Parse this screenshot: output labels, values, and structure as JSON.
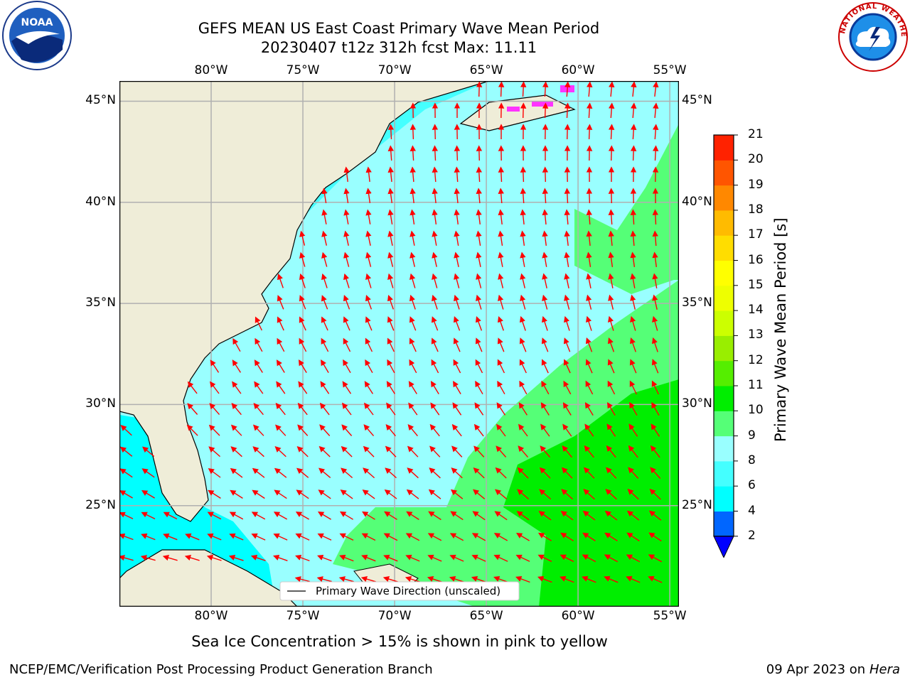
{
  "title": {
    "line1": "GEFS MEAN US East Coast Primary Wave Mean Period",
    "line2": "20230407 t12z 312h fcst   Max: 11.11"
  },
  "logos": {
    "left": "noaa-logo",
    "right": "national-weather-service-logo",
    "left_text": "NOAA",
    "right_text": "NATIONAL WEATHER SERVICE"
  },
  "map": {
    "lon_ticks": [
      "80°W",
      "75°W",
      "70°W",
      "65°W",
      "60°W",
      "55°W"
    ],
    "lat_ticks": [
      "45°N",
      "40°N",
      "35°N",
      "30°N",
      "25°N"
    ],
    "lon_values": [
      -80,
      -75,
      -70,
      -65,
      -60,
      -55
    ],
    "lat_values": [
      45,
      40,
      35,
      30,
      25
    ],
    "extent": {
      "lon_min": -85,
      "lon_max": -54.5,
      "lat_min": 20,
      "lat_max": 46
    },
    "legend": "Primary Wave Direction (unscaled)",
    "colors": {
      "land": "#efedd8",
      "coast": "#000000",
      "arrow": "#ff0000",
      "grid": "#b0b0b0"
    }
  },
  "colorbar": {
    "label": "Primary Wave Mean Period [s]",
    "ticks": [
      "2",
      "4",
      "6",
      "8",
      "9",
      "10",
      "11",
      "12",
      "13",
      "14",
      "15",
      "16",
      "17",
      "18",
      "19",
      "20",
      "21"
    ],
    "colors": [
      "#0066ff",
      "#00ffff",
      "#44ffff",
      "#99ffff",
      "#55ff77",
      "#00ee00",
      "#55ee00",
      "#99ee00",
      "#ccff00",
      "#eeff00",
      "#ffff00",
      "#ffdd00",
      "#ffbb00",
      "#ff8800",
      "#ff5500",
      "#ff2200"
    ],
    "extend_color": "#0000ff"
  },
  "note": "Sea Ice Concentration > 15% is shown in pink to yellow",
  "footer": {
    "left": "NCEP/EMC/Verification Post Processing Product Generation Branch",
    "date": "09 Apr 2023 on ",
    "machine": "Hera"
  }
}
